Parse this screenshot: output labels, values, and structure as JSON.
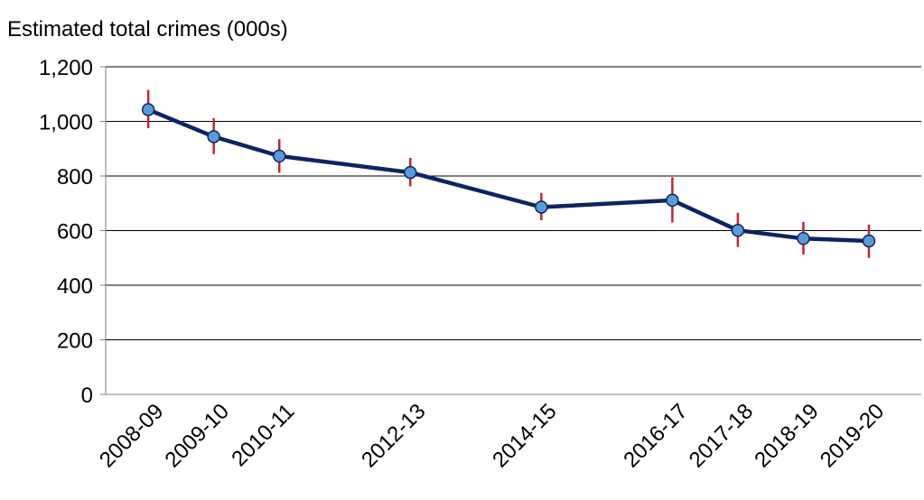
{
  "chart_data": {
    "type": "line",
    "title": "Estimated total crimes (000s)",
    "xlabel": "",
    "ylabel": "",
    "ylim": [
      0,
      1200
    ],
    "yticks": [
      0,
      200,
      400,
      600,
      800,
      1000,
      1200
    ],
    "ytick_labels": [
      "0",
      "200",
      "400",
      "600",
      "800",
      "1,000",
      "1,200"
    ],
    "grid": true,
    "legend": "none",
    "x": [
      "2008-09",
      "2009-10",
      "2010-11",
      "2012-13",
      "2014-15",
      "2016-17",
      "2017-18",
      "2018-19",
      "2019-20"
    ],
    "x_pos": [
      2008,
      2009,
      2010,
      2012,
      2014,
      2016,
      2017,
      2018,
      2019
    ],
    "series": [
      {
        "values": [
          1043,
          944,
          873,
          813,
          686,
          711,
          601,
          571,
          562
        ],
        "error_low": [
          975,
          880,
          812,
          762,
          638,
          630,
          540,
          512,
          500
        ],
        "error_high": [
          1115,
          1012,
          935,
          866,
          738,
          795,
          665,
          632,
          622
        ]
      }
    ],
    "colors": {
      "line": "#0c2461",
      "marker_fill": "#5b9bd5",
      "marker_stroke": "#0c2461",
      "error_bar": "#c0262d",
      "grid": "#000000"
    }
  }
}
